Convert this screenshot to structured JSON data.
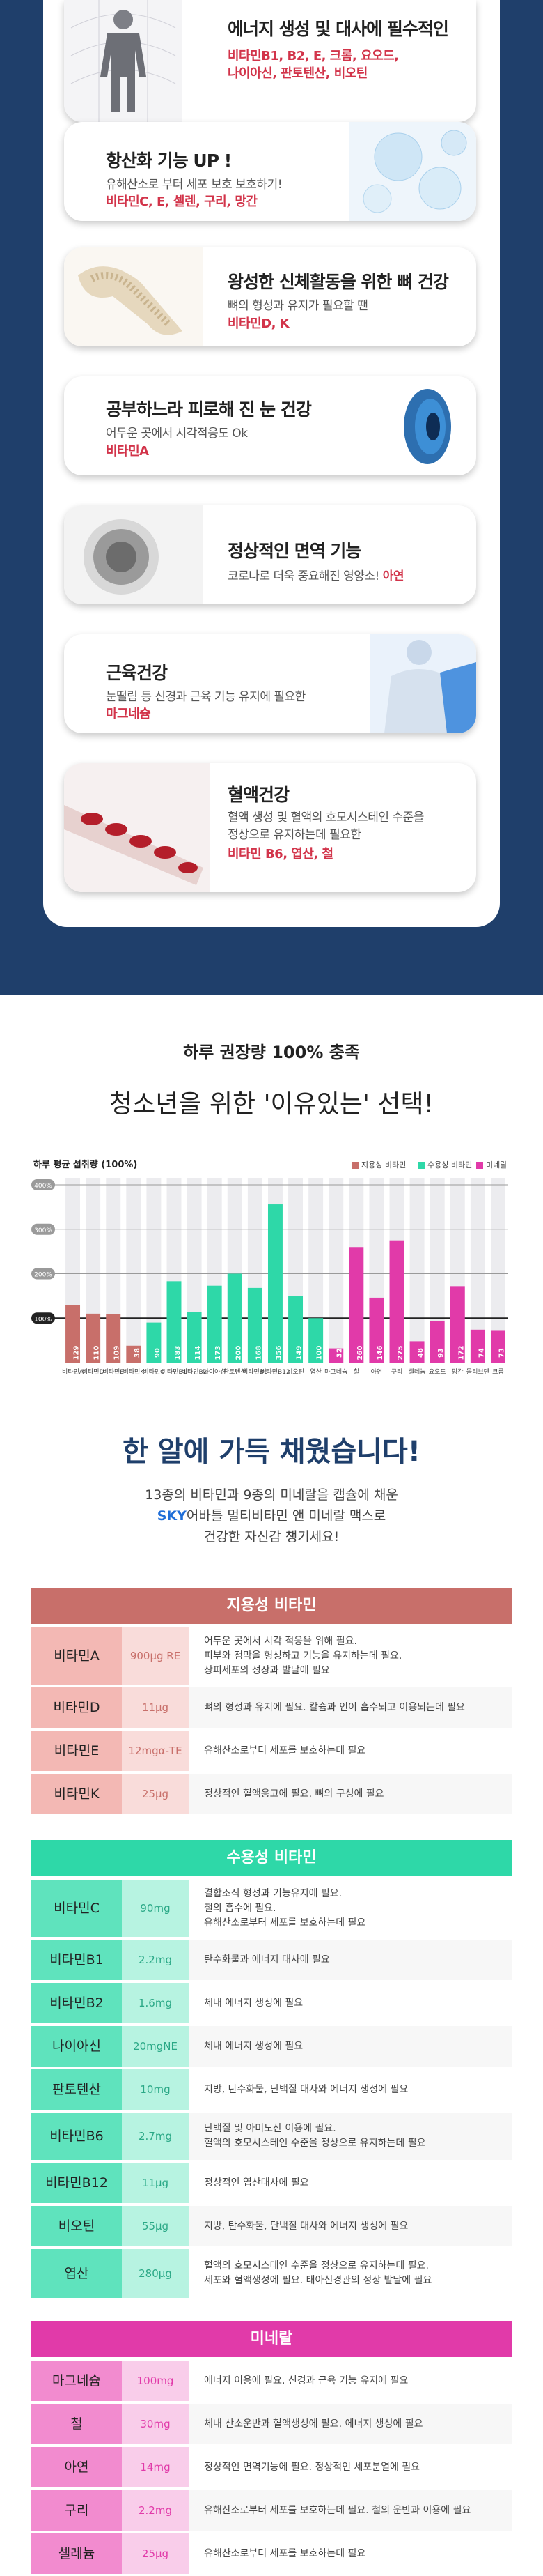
{
  "colors": {
    "fat": "#c86f6a",
    "water": "#2ed8a8",
    "mineral": "#e13aa9",
    "navy": "#1f3f6b",
    "red": "#d2344a"
  },
  "benefits": [
    {
      "title": "에너지 생성 및 대사에 필수적인",
      "desc": "",
      "vit": "비타민B1, B2, E, 크롬, 요오드,\n나이아신, 판토텐산, 비오틴",
      "icon": "human-body-icon"
    },
    {
      "title": "항산화 기능 UP !",
      "desc": "유해산소로 부터 세포 보호 보호하기!",
      "vit": "비타민C, E, 셀렌, 구리, 망간",
      "icon": "cells-icon"
    },
    {
      "title": "왕성한 신체활동을 위한 뼈 건강",
      "desc": "뼈의 형성과 유지가 필요할 땐",
      "vit": "비타민D, K",
      "icon": "bone-icon"
    },
    {
      "title": "공부하느라 피로해 진 눈 건강",
      "desc": "어두운 곳에서 시각적응도 Ok",
      "vit": "비타민A",
      "icon": "eye-lens-icon"
    },
    {
      "title": "정상적인 면역 기능",
      "desc": "코로나로 더욱 중요해진 영양소!",
      "vit": "아연",
      "icon": "immune-cell-icon"
    },
    {
      "title": "근육건강",
      "desc": "눈떨림 등 신경과 근육 기능 유지에 필요한",
      "vit": "마그네슘",
      "icon": "muscle-body-icon"
    },
    {
      "title": "혈액건강",
      "desc": "혈액 생성 및 혈액의 호모시스테인 수준을\n정상으로 유지하는데 필요한",
      "vit": "비타민 B6, 엽산, 철",
      "icon": "blood-vessel-icon"
    }
  ],
  "headline": {
    "sub": "하루 권장량 100% 충족",
    "main": "청소년을 위한 '이유있는' 선택!"
  },
  "chart_data": {
    "type": "bar",
    "title": "하루 평균 섭취량 (100%)",
    "legend": [
      "지용성 비타민",
      "수용성 비타민",
      "미네랄"
    ],
    "y_ticks": [
      "100%",
      "200%",
      "300%",
      "400%"
    ],
    "categories": [
      "비타민A",
      "비타민D",
      "비타민E",
      "비타민K",
      "비타민C",
      "비타민B1",
      "비타민B2",
      "나이아신",
      "판토텐산",
      "비타민B6",
      "비타민B12",
      "비오틴",
      "엽산",
      "마그네슘",
      "철",
      "아연",
      "구리",
      "셀레늄",
      "요오드",
      "망간",
      "몰리브덴",
      "크롬"
    ],
    "values": [
      129,
      110,
      109,
      38,
      90,
      183,
      114,
      173,
      200,
      168,
      356,
      149,
      100,
      32,
      260,
      146,
      275,
      48,
      93,
      172,
      74,
      73
    ],
    "groups": [
      "fat",
      "fat",
      "fat",
      "fat",
      "water",
      "water",
      "water",
      "water",
      "water",
      "water",
      "water",
      "water",
      "water",
      "mineral",
      "mineral",
      "mineral",
      "mineral",
      "mineral",
      "mineral",
      "mineral",
      "mineral",
      "mineral"
    ],
    "ylim": [
      0,
      400
    ],
    "legend_position": "top-right"
  },
  "summary": {
    "title": "한 알에 가득 채웠습니다!",
    "l1": "13종의 비타민과 9종의 미네랄을 캡슐에 채운",
    "l2": "SKY어바틀 멀티비타민 앤 미네랄 맥스로",
    "l3": "건강한 자신감 챙기세요!"
  },
  "fat": {
    "title": "지용성 비타민",
    "rows": [
      {
        "name": "비타민A",
        "amt": "900μg RE",
        "desc": "어두운 곳에서 시각 적응을 위해 필요.\n피부와 점막을 형성하고 기능을 유지하는데 필요.\n상피세포의 성장과 발달에 필요"
      },
      {
        "name": "비타민D",
        "amt": "11μg",
        "desc": "뼈의 형성과 유지에 필요. 칼슘과 인이 흡수되고 이용되는데 필요"
      },
      {
        "name": "비타민E",
        "amt": "12mgα-TE",
        "desc": "유해산소로부터 세포를 보호하는데 필요"
      },
      {
        "name": "비타민K",
        "amt": "25μg",
        "desc": "정상적인 혈액응고에 필요. 뼈의 구성에 필요"
      }
    ]
  },
  "water": {
    "title": "수용성 비타민",
    "rows": [
      {
        "name": "비타민C",
        "amt": "90mg",
        "desc": "결합조직 형성과 기능유지에 필요.\n철의 흡수에 필요.\n유해산소로부터 세포를 보호하는데 필요"
      },
      {
        "name": "비타민B1",
        "amt": "2.2mg",
        "desc": "탄수화물과 에너지 대사에 필요"
      },
      {
        "name": "비타민B2",
        "amt": "1.6mg",
        "desc": "체내 에너지 생성에 필요"
      },
      {
        "name": "나이아신",
        "amt": "20mgNE",
        "desc": "체내 에너지 생성에 필요"
      },
      {
        "name": "판토텐산",
        "amt": "10mg",
        "desc": "지방, 탄수화물, 단백질 대사와 에너지 생성에 필요"
      },
      {
        "name": "비타민B6",
        "amt": "2.7mg",
        "desc": "단백질 및 아미노산 이용에 필요.\n혈액의 호모시스테인 수준을 정상으로 유지하는데 필요"
      },
      {
        "name": "비타민B12",
        "amt": "11μg",
        "desc": "정상적인 엽산대사에 필요"
      },
      {
        "name": "비오틴",
        "amt": "55μg",
        "desc": "지방, 탄수화물, 단백질 대사와 에너지 생성에 필요"
      },
      {
        "name": "엽산",
        "amt": "280μg",
        "desc": "혈액의 호모시스테인 수준을 정상으로 유지하는데 필요.\n세포와 혈액생성에 필요. 태아신경관의 정상 발달에 필요"
      }
    ]
  },
  "mineral": {
    "title": "미네랄",
    "rows": [
      {
        "name": "마그네슘",
        "amt": "100mg",
        "desc": "에너지 이용에 필요. 신경과 근육 기능 유지에 필요"
      },
      {
        "name": "철",
        "amt": "30mg",
        "desc": "체내 산소운반과 혈액생성에 필요. 에너지 생성에 필요"
      },
      {
        "name": "아연",
        "amt": "14mg",
        "desc": "정상적인 면역기능에 필요. 정상적인 세포분열에 필요"
      },
      {
        "name": "구리",
        "amt": "2.2mg",
        "desc": "유해산소로부터 세포를 보호하는데 필요. 철의 운반과 이용에 필요"
      },
      {
        "name": "셀레늄",
        "amt": "25μg",
        "desc": "유해산소로부터 세포를 보호하는데 필요"
      }
    ]
  }
}
